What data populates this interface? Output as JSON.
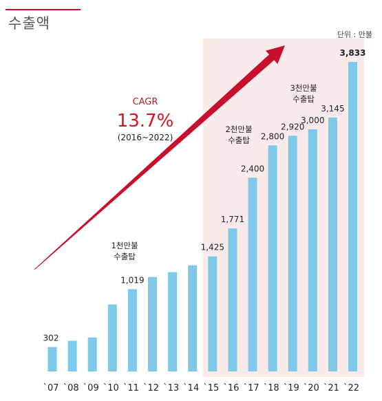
{
  "title": "수출액",
  "unit": "단위 : 만불",
  "cagr": {
    "label": "CAGR",
    "value": "13.7%",
    "range": "(2016~2022)"
  },
  "annotations": [
    {
      "line1": "1천만불",
      "line2": "수출탑"
    },
    {
      "line1": "2천만불",
      "line2": "수출탑"
    },
    {
      "line1": "3천만불",
      "line2": "수출탑"
    }
  ],
  "colors": {
    "bar": "#7ec8ea",
    "highlight_region": "#fbeaea",
    "arrow": "#c8102e",
    "accent": "#d2141e"
  },
  "chart_data": {
    "type": "bar",
    "title": "수출액",
    "xlabel": "",
    "ylabel": "",
    "categories": [
      "`07",
      "`08",
      "`09",
      "`10",
      "`11",
      "`12",
      "`13",
      "`14",
      "`15",
      "`16",
      "`17",
      "`18",
      "`19",
      "`20",
      "`21",
      "`22"
    ],
    "values": [
      302,
      380,
      420,
      830,
      1019,
      1170,
      1230,
      1315,
      1425,
      1771,
      2400,
      2800,
      2920,
      3000,
      3145,
      3833
    ],
    "data_labels": [
      "302",
      "",
      "",
      "",
      "1,019",
      "",
      "",
      "",
      "1,425",
      "1,771",
      "2,400",
      "2,800",
      "2,920",
      "3,000",
      "3,145",
      "3,833"
    ],
    "highlight_range": [
      "`15",
      "`22"
    ],
    "ylim": [
      0,
      4000
    ],
    "grid": false,
    "legend": "none"
  }
}
